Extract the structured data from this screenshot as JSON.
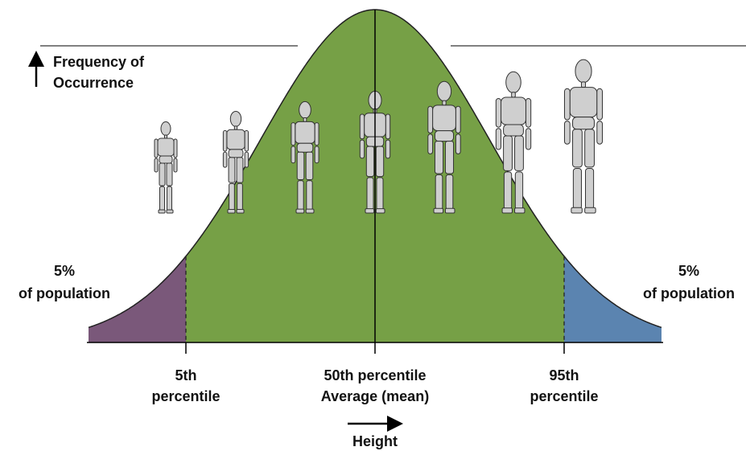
{
  "y_axis_label": [
    "Frequency of",
    "Occurrence"
  ],
  "x_axis_label": "Height",
  "regions": [
    {
      "label": [
        "5%",
        "of population"
      ]
    },
    {
      "label": [
        "5%",
        "of population"
      ]
    }
  ],
  "percentiles": [
    {
      "label": [
        "5th",
        "percentile"
      ]
    },
    {
      "label": [
        "50th percentile",
        "Average (mean)"
      ]
    },
    {
      "label": [
        "95th",
        "percentile"
      ]
    }
  ]
}
